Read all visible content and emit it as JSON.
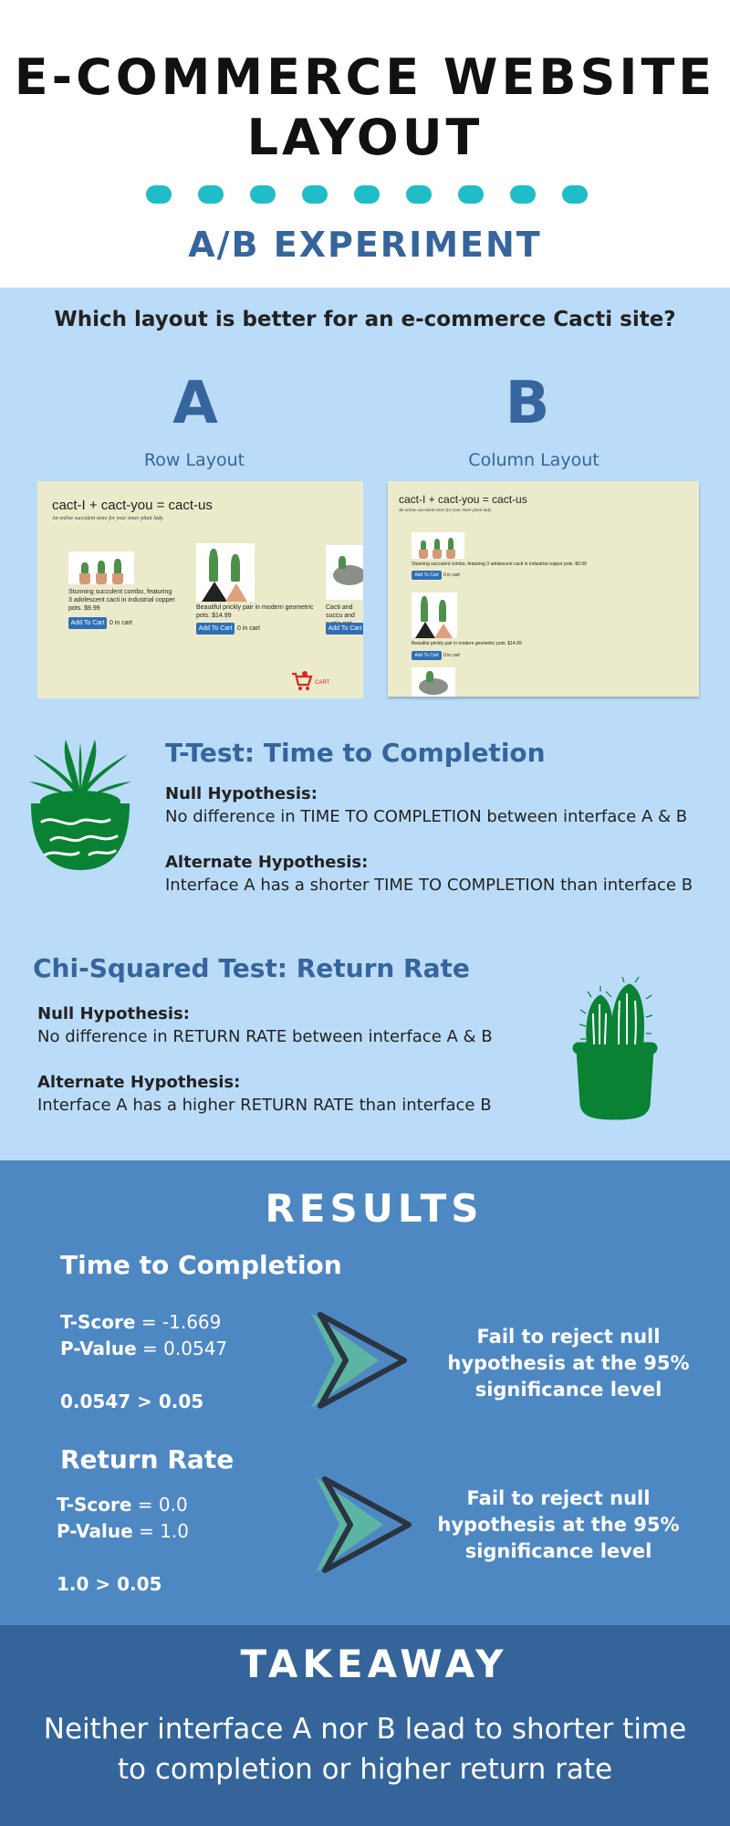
{
  "header": {
    "title": "E-COMMERCE WEBSITE LAYOUT",
    "subtitle": "A/B EXPERIMENT"
  },
  "intro": {
    "question": "Which layout is better for an e-commerce Cacti site?",
    "variants": [
      {
        "letter": "A",
        "name": "Row Layout"
      },
      {
        "letter": "B",
        "name": "Column Layout"
      }
    ]
  },
  "screenshots": {
    "site_title": "cact-I + cact-you = cact-us",
    "site_tagline": "An online succulent store for your inner plant lady.",
    "products": [
      {
        "desc": "Stunning succulent combo, featuring 3 adolescent cacti in industrial copper pots.",
        "price": "$9.99"
      },
      {
        "desc": "Beautiful prickly pair in modern geometric pots.",
        "price": "$14.99"
      },
      {
        "desc": "Cacti and succulent and rustic pot.",
        "price": ""
      }
    ],
    "row_product_1_text": "Stunning succulent combo, featuring 3 adolescent cacti in industrial copper pots. $9.99",
    "row_product_2_text": "Beautiful prickly pair in modern geometric pots. $14.99",
    "row_product_3_text": "Cacti and succu and rustic pot",
    "col_product_1_text": "Stunning succulent combo, featuring 3 adolescent cacti in industrial copper pots. $9.99",
    "col_product_2_text": "Beautiful prickly pair in modern geometric pots. $14.99",
    "add_to_cart": "Add To Cart",
    "in_cart": "0 in cart",
    "cart_label": "CART"
  },
  "ttest": {
    "title": "T-Test: Time to Completion",
    "null_label": "Null Hypothesis:",
    "null_text": "No difference in TIME TO COMPLETION between interface A & B",
    "alt_label": "Alternate Hypothesis:",
    "alt_text": "Interface A has a shorter TIME TO COMPLETION than interface B"
  },
  "chisq": {
    "title": "Chi-Squared Test: Return Rate",
    "null_label": "Null Hypothesis:",
    "null_text": "No difference in RETURN RATE between interface A & B",
    "alt_label": "Alternate Hypothesis:",
    "alt_text": "Interface A has a higher RETURN RATE than interface B"
  },
  "results": {
    "title": "RESULTS",
    "time": {
      "heading": "Time to Completion",
      "tscore_label": "T-Score",
      "tscore_value": " = -1.669",
      "pvalue_label": "P-Value",
      "pvalue_value": " = 0.0547",
      "compare": "0.0547 > 0.05",
      "conclusion": "Fail to reject null hypothesis at the 95% significance level"
    },
    "return": {
      "heading": "Return Rate",
      "tscore_label": "T-Score",
      "tscore_value": " = 0.0",
      "pvalue_label": "P-Value",
      "pvalue_value": " = 1.0",
      "compare": "1.0 > 0.05",
      "conclusion": "Fail to reject null hypothesis at the 95% significance level"
    }
  },
  "takeaway": {
    "title": "TAKEAWAY",
    "text": "Neither interface A nor B lead to shorter time to completion or higher return rate"
  },
  "colors": {
    "accent_teal": "#1fbdc8",
    "heading_blue": "#35659c",
    "light_bg": "#bbdcf8",
    "results_bg": "#4e88c3",
    "takeaway_bg": "#34649a",
    "plant_green": "#098234"
  }
}
